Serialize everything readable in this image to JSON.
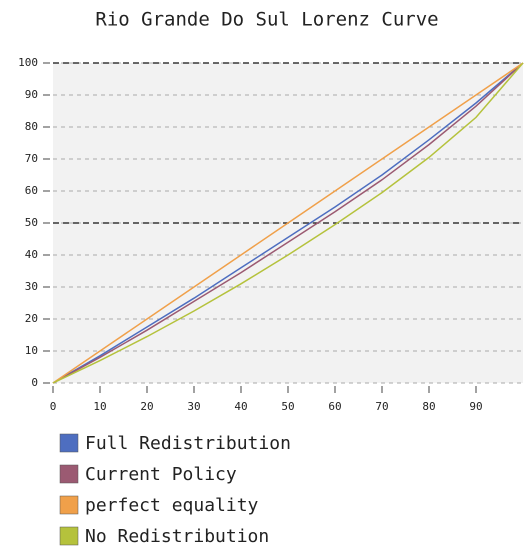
{
  "chart_data": {
    "type": "line",
    "title": "Rio Grande Do Sul Lorenz Curve",
    "x": [
      0,
      10,
      20,
      30,
      40,
      50,
      60,
      70,
      80,
      90,
      100
    ],
    "xlim": [
      0,
      100
    ],
    "xticks": [
      0,
      10,
      20,
      30,
      40,
      50,
      60,
      70,
      80,
      90
    ],
    "ylim": [
      0,
      100
    ],
    "yticks": [
      0,
      10,
      20,
      30,
      40,
      50,
      60,
      70,
      80,
      90,
      100
    ],
    "grid": true,
    "reference_lines": [
      50,
      100
    ],
    "legend": "bottom",
    "series": [
      {
        "name": "Full Redistribution",
        "color": "#4e6ec0",
        "values": [
          0,
          8.5,
          17.5,
          26.5,
          36,
          45.5,
          55,
          65,
          76,
          87.5,
          100
        ]
      },
      {
        "name": "Current Policy",
        "color": "#9b5a72",
        "values": [
          0,
          8,
          16.5,
          25.5,
          34.5,
          44,
          53.5,
          63.5,
          74.5,
          86.5,
          100
        ]
      },
      {
        "name": "perfect equality",
        "color": "#f0a04a",
        "values": [
          0,
          10,
          20,
          30,
          40,
          50,
          60,
          70,
          80,
          90,
          100
        ]
      },
      {
        "name": "No Redistribution",
        "color": "#b5c23c",
        "values": [
          0,
          7,
          14.5,
          22.5,
          31,
          40,
          49.5,
          59.5,
          70.5,
          83,
          100
        ]
      }
    ]
  }
}
